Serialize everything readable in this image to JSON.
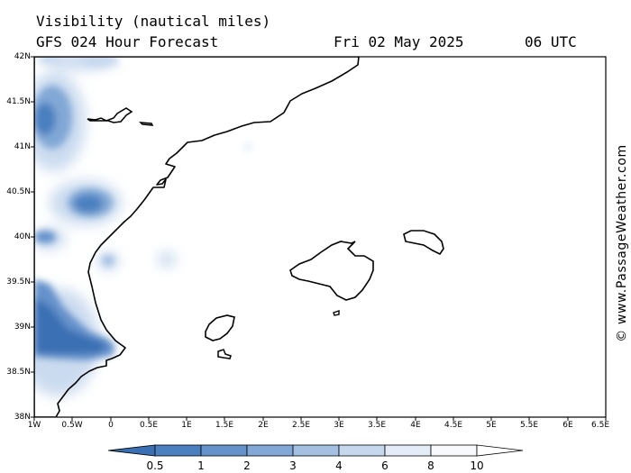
{
  "header": {
    "title": "Visibility (nautical miles)",
    "subtitle": "GFS 024 Hour Forecast",
    "date": "Fri 02 May 2025",
    "time": "06 UTC"
  },
  "map": {
    "lat_labels": [
      "42N",
      "41.5N",
      "41N",
      "40.5N",
      "40N",
      "39.5N",
      "39N",
      "38.5N",
      "38N"
    ],
    "lon_labels": [
      "1W",
      "0.5W",
      "0",
      "0.5E",
      "1E",
      "1.5E",
      "2E",
      "2.5E",
      "3E",
      "3.5E",
      "4E",
      "4.5E",
      "5E",
      "5.5E",
      "6E",
      "6.5E"
    ],
    "coast_color": "#000000",
    "land_color": "#ffffff"
  },
  "colorbar": {
    "labels": [
      "0.5",
      "1",
      "2",
      "3",
      "4",
      "6",
      "8",
      "10"
    ],
    "colors": [
      "#3a6fb4",
      "#4b80c0",
      "#6592cb",
      "#81a8d6",
      "#a3c0e2",
      "#c6d8ee",
      "#e3ecf7",
      "#f7fafd"
    ]
  },
  "watermark": "© www.PassageWeather.com"
}
